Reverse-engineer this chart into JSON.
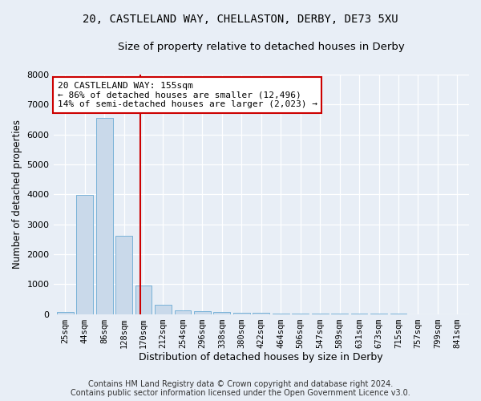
{
  "title_line1": "20, CASTLELAND WAY, CHELLASTON, DERBY, DE73 5XU",
  "title_line2": "Size of property relative to detached houses in Derby",
  "xlabel": "Distribution of detached houses by size in Derby",
  "ylabel": "Number of detached properties",
  "bar_color": "#c9d9ea",
  "bar_edge_color": "#6aaad4",
  "categories": [
    "25sqm",
    "44sqm",
    "86sqm",
    "128sqm",
    "170sqm",
    "212sqm",
    "254sqm",
    "296sqm",
    "338sqm",
    "380sqm",
    "422sqm",
    "464sqm",
    "506sqm",
    "547sqm",
    "589sqm",
    "631sqm",
    "673sqm",
    "715sqm",
    "757sqm",
    "799sqm",
    "841sqm"
  ],
  "values": [
    60,
    3980,
    6560,
    2620,
    950,
    320,
    125,
    95,
    65,
    55,
    45,
    20,
    15,
    10,
    8,
    5,
    4,
    3,
    2,
    2,
    1
  ],
  "ylim": [
    0,
    8000
  ],
  "yticks": [
    0,
    1000,
    2000,
    3000,
    4000,
    5000,
    6000,
    7000,
    8000
  ],
  "vline_x": 3.85,
  "vline_color": "#cc0000",
  "ann_line1": "20 CASTLELAND WAY: 155sqm",
  "ann_line2": "← 86% of detached houses are smaller (12,496)",
  "ann_line3": "14% of semi-detached houses are larger (2,023) →",
  "annotation_box_color": "#ffffff",
  "annotation_border_color": "#cc0000",
  "footer_line1": "Contains HM Land Registry data © Crown copyright and database right 2024.",
  "footer_line2": "Contains public sector information licensed under the Open Government Licence v3.0.",
  "bg_color": "#e8eef6",
  "plot_bg_color": "#e8eef6",
  "title_fontsize": 10,
  "subtitle_fontsize": 9.5,
  "annotation_fontsize": 8,
  "footer_fontsize": 7
}
